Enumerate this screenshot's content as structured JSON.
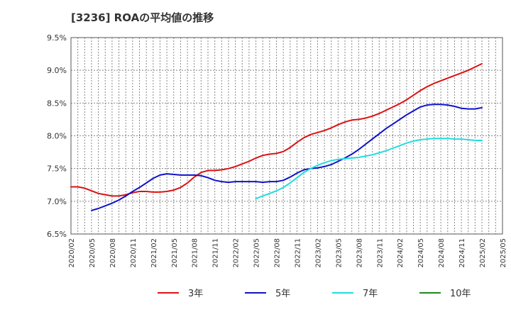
{
  "chart_data": {
    "type": "line",
    "title": "[3236]  ROAの平均値の推移",
    "xlabel": "",
    "ylabel": "",
    "ylim": [
      6.5,
      9.5
    ],
    "y_ticks": [
      "6.5%",
      "7.0%",
      "7.5%",
      "8.0%",
      "8.5%",
      "9.0%",
      "9.5%"
    ],
    "x_ticks": [
      "2020/02",
      "2020/05",
      "2020/08",
      "2020/11",
      "2021/02",
      "2021/05",
      "2021/08",
      "2021/11",
      "2022/02",
      "2022/05",
      "2022/08",
      "2022/11",
      "2023/02",
      "2023/05",
      "2023/08",
      "2023/11",
      "2024/02",
      "2024/05",
      "2024/08",
      "2024/11",
      "2025/02",
      "2025/05"
    ],
    "x_range": [
      "2020/02",
      "2025/05"
    ],
    "grid": true,
    "legend_position": "bottom",
    "series": [
      {
        "name": "3年",
        "color": "#dd1111",
        "x": [
          "2020/02",
          "2020/03",
          "2020/04",
          "2020/05",
          "2020/06",
          "2020/07",
          "2020/08",
          "2020/09",
          "2020/10",
          "2020/11",
          "2020/12",
          "2021/01",
          "2021/02",
          "2021/03",
          "2021/04",
          "2021/05",
          "2021/06",
          "2021/07",
          "2021/08",
          "2021/09",
          "2021/10",
          "2021/11",
          "2021/12",
          "2022/01",
          "2022/02",
          "2022/03",
          "2022/04",
          "2022/05",
          "2022/06",
          "2022/07",
          "2022/08",
          "2022/09",
          "2022/10",
          "2022/11",
          "2022/12",
          "2023/01",
          "2023/02",
          "2023/03",
          "2023/04",
          "2023/05",
          "2023/06",
          "2023/07",
          "2023/08",
          "2023/09",
          "2023/10",
          "2023/11",
          "2023/12",
          "2024/01",
          "2024/02",
          "2024/03",
          "2024/04",
          "2024/05",
          "2024/06",
          "2024/07",
          "2024/08",
          "2024/09",
          "2024/10",
          "2024/11",
          "2024/12",
          "2025/01",
          "2025/02"
        ],
        "values": [
          7.22,
          7.22,
          7.2,
          7.16,
          7.12,
          7.1,
          7.08,
          7.08,
          7.1,
          7.13,
          7.15,
          7.15,
          7.14,
          7.14,
          7.15,
          7.17,
          7.21,
          7.28,
          7.37,
          7.44,
          7.47,
          7.47,
          7.48,
          7.5,
          7.53,
          7.57,
          7.61,
          7.66,
          7.7,
          7.72,
          7.73,
          7.76,
          7.82,
          7.9,
          7.97,
          8.02,
          8.05,
          8.08,
          8.12,
          8.17,
          8.21,
          8.24,
          8.25,
          8.27,
          8.3,
          8.34,
          8.39,
          8.44,
          8.49,
          8.55,
          8.62,
          8.69,
          8.75,
          8.8,
          8.84,
          8.88,
          8.92,
          8.96,
          9.0,
          9.05,
          9.1
        ]
      },
      {
        "name": "5年",
        "color": "#1111cc",
        "x": [
          "2020/05",
          "2020/06",
          "2020/07",
          "2020/08",
          "2020/09",
          "2020/10",
          "2020/11",
          "2020/12",
          "2021/01",
          "2021/02",
          "2021/03",
          "2021/04",
          "2021/05",
          "2021/06",
          "2021/07",
          "2021/08",
          "2021/09",
          "2021/10",
          "2021/11",
          "2021/12",
          "2022/01",
          "2022/02",
          "2022/03",
          "2022/04",
          "2022/05",
          "2022/06",
          "2022/07",
          "2022/08",
          "2022/09",
          "2022/10",
          "2022/11",
          "2022/12",
          "2023/01",
          "2023/02",
          "2023/03",
          "2023/04",
          "2023/05",
          "2023/06",
          "2023/07",
          "2023/08",
          "2023/09",
          "2023/10",
          "2023/11",
          "2023/12",
          "2024/01",
          "2024/02",
          "2024/03",
          "2024/04",
          "2024/05",
          "2024/06",
          "2024/07",
          "2024/08",
          "2024/09",
          "2024/10",
          "2024/11",
          "2024/12",
          "2025/01",
          "2025/02"
        ],
        "values": [
          6.86,
          6.89,
          6.93,
          6.97,
          7.02,
          7.08,
          7.15,
          7.21,
          7.28,
          7.35,
          7.4,
          7.42,
          7.41,
          7.4,
          7.4,
          7.4,
          7.39,
          7.36,
          7.32,
          7.3,
          7.29,
          7.3,
          7.3,
          7.3,
          7.3,
          7.29,
          7.3,
          7.3,
          7.32,
          7.37,
          7.43,
          7.48,
          7.5,
          7.51,
          7.53,
          7.56,
          7.61,
          7.66,
          7.72,
          7.79,
          7.87,
          7.95,
          8.03,
          8.11,
          8.18,
          8.25,
          8.32,
          8.38,
          8.44,
          8.47,
          8.48,
          8.48,
          8.47,
          8.45,
          8.42,
          8.41,
          8.41,
          8.43
        ]
      },
      {
        "name": "7年",
        "color": "#22dddd",
        "x": [
          "2022/05",
          "2022/06",
          "2022/07",
          "2022/08",
          "2022/09",
          "2022/10",
          "2022/11",
          "2022/12",
          "2023/01",
          "2023/02",
          "2023/03",
          "2023/04",
          "2023/05",
          "2023/06",
          "2023/07",
          "2023/08",
          "2023/09",
          "2023/10",
          "2023/11",
          "2023/12",
          "2024/01",
          "2024/02",
          "2024/03",
          "2024/04",
          "2024/05",
          "2024/06",
          "2024/07",
          "2024/08",
          "2024/09",
          "2024/10",
          "2024/11",
          "2024/12",
          "2025/01",
          "2025/02"
        ],
        "values": [
          7.04,
          7.08,
          7.12,
          7.16,
          7.21,
          7.28,
          7.36,
          7.44,
          7.5,
          7.55,
          7.59,
          7.62,
          7.64,
          7.65,
          7.66,
          7.67,
          7.69,
          7.71,
          7.74,
          7.77,
          7.81,
          7.85,
          7.89,
          7.92,
          7.94,
          7.95,
          7.96,
          7.96,
          7.96,
          7.95,
          7.95,
          7.94,
          7.93,
          7.93
        ]
      },
      {
        "name": "10年",
        "color": "#228822",
        "x": [],
        "values": []
      }
    ]
  }
}
